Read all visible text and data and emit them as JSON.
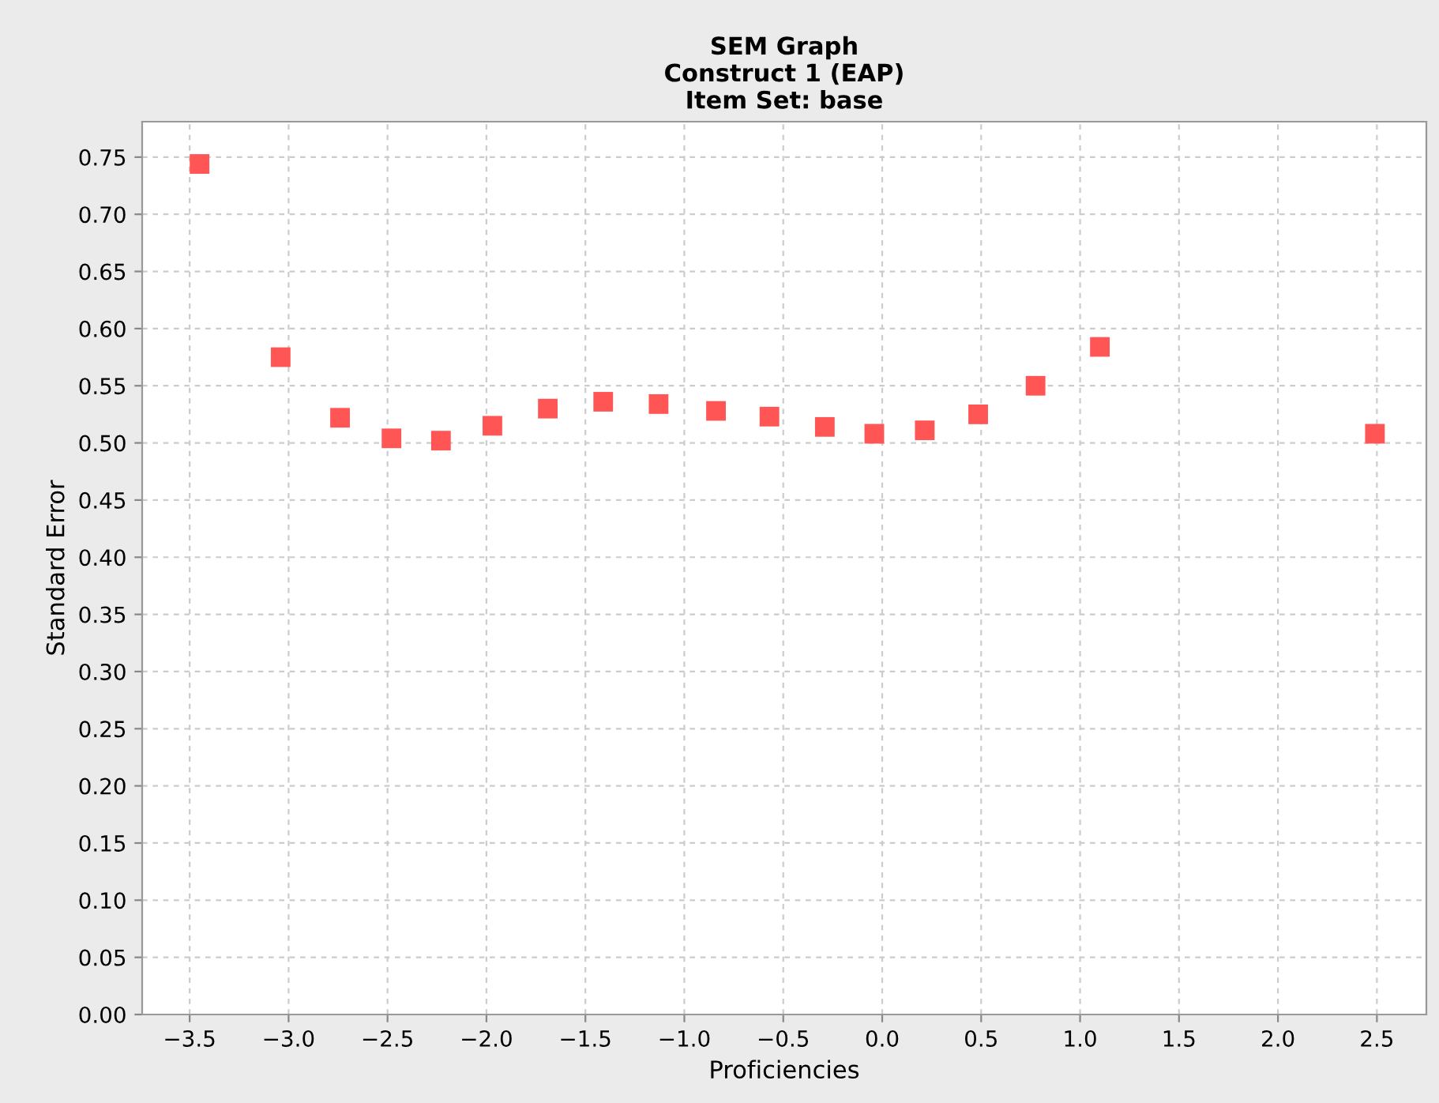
{
  "chart_data": {
    "type": "scatter",
    "title": "SEM Graph\nConstruct 1 (EAP)\nItem Set: base",
    "xlabel": "Proficiencies",
    "ylabel": "Standard Error",
    "x": [
      -3.45,
      -3.04,
      -2.74,
      -2.48,
      -2.23,
      -1.97,
      -1.69,
      -1.41,
      -1.13,
      -0.84,
      -0.57,
      -0.29,
      -0.04,
      0.215,
      0.485,
      0.775,
      1.1,
      2.49
    ],
    "series": [
      {
        "color": "#ff5555",
        "values": [
          0.744,
          0.575,
          0.522,
          0.504,
          0.502,
          0.515,
          0.53,
          0.536,
          0.534,
          0.528,
          0.523,
          0.514,
          0.508,
          0.511,
          0.525,
          0.55,
          0.584,
          0.508
        ]
      }
    ],
    "xlim": [
      -3.74,
      2.75
    ],
    "xticks": [
      {
        "value": -3.5,
        "label": "−3.5"
      },
      {
        "value": -3.0,
        "label": "−3.0"
      },
      {
        "value": -2.5,
        "label": "−2.5"
      },
      {
        "value": -2.0,
        "label": "−2.0"
      },
      {
        "value": -1.5,
        "label": "−1.5"
      },
      {
        "value": -1.0,
        "label": "−1.0"
      },
      {
        "value": -0.5,
        "label": "−0.5"
      },
      {
        "value": 0.0,
        "label": "0.0"
      },
      {
        "value": 0.5,
        "label": "0.5"
      },
      {
        "value": 1.0,
        "label": "1.0"
      },
      {
        "value": 1.5,
        "label": "1.5"
      },
      {
        "value": 2.0,
        "label": "2.0"
      },
      {
        "value": 2.5,
        "label": "2.5"
      }
    ],
    "ylim": [
      0,
      0.781
    ],
    "yticks": [
      {
        "value": 0,
        "label": "0.00"
      },
      {
        "value": 0.05,
        "label": "0.05"
      },
      {
        "value": 0.1,
        "label": "0.10"
      },
      {
        "value": 0.15,
        "label": "0.15"
      },
      {
        "value": 0.2,
        "label": "0.20"
      },
      {
        "value": 0.25,
        "label": "0.25"
      },
      {
        "value": 0.3,
        "label": "0.30"
      },
      {
        "value": 0.35,
        "label": "0.35"
      },
      {
        "value": 0.4,
        "label": "0.40"
      },
      {
        "value": 0.45,
        "label": "0.45"
      },
      {
        "value": 0.5,
        "label": "0.50"
      },
      {
        "value": 0.55,
        "label": "0.55"
      },
      {
        "value": 0.6,
        "label": "0.60"
      },
      {
        "value": 0.65,
        "label": "0.65"
      },
      {
        "value": 0.7,
        "label": "0.70"
      },
      {
        "value": 0.75,
        "label": "0.75"
      }
    ],
    "grid": true,
    "marker": "square"
  }
}
